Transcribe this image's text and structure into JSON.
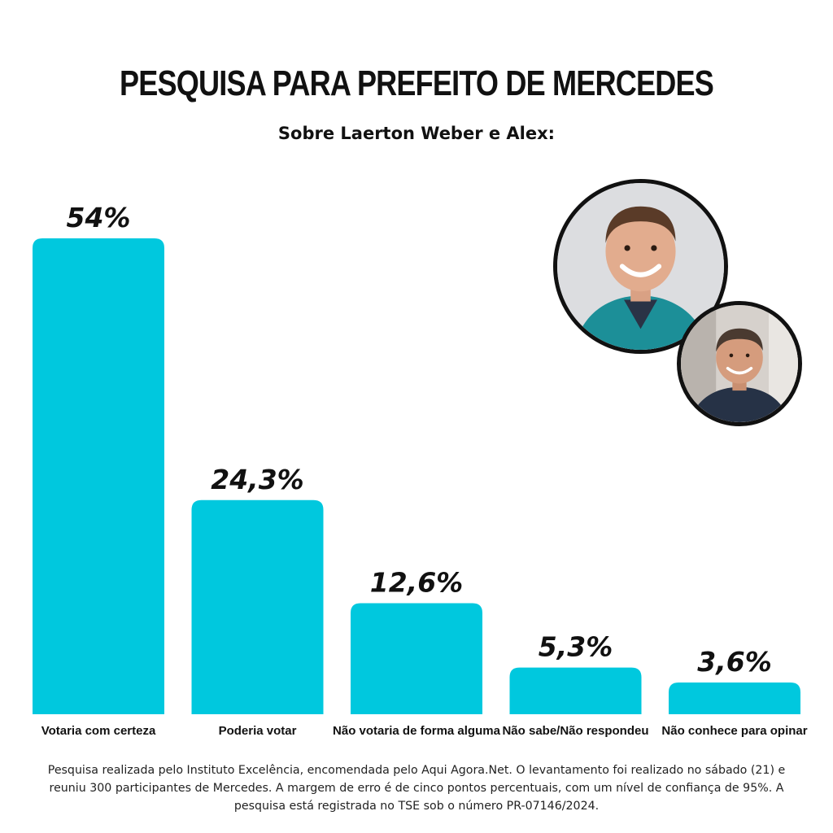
{
  "header": {
    "title": "PESQUISA PARA PREFEITO DE MERCEDES",
    "subtitle": "Sobre Laerton Weber e Alex:"
  },
  "colors": {
    "bar": "#00c8de",
    "text": "#111111",
    "background": "#ffffff"
  },
  "photos": [
    {
      "icon": "candidate-photo-laerton-weber"
    },
    {
      "icon": "candidate-photo-alex"
    }
  ],
  "footnote": "Pesquisa realizada pelo Instituto Excelência, encomendada pelo Aqui Agora.Net. O levantamento foi realizado no sábado (21) e reuniu 300 participantes de Mercedes. A margem de erro é de cinco pontos percentuais, com um nível de confiança de 95%. A pesquisa está registrada no TSE sob o número PR-07146/2024.",
  "chart_data": {
    "type": "bar",
    "title": "PESQUISA PARA PREFEITO DE MERCEDES",
    "subtitle": "Sobre Laerton Weber e Alex:",
    "categories": [
      "Votaria com certeza",
      "Poderia votar",
      "Não votaria de forma alguma",
      "Não sabe/Não respondeu",
      "Não conhece para opinar"
    ],
    "values": [
      54,
      24.3,
      12.6,
      5.3,
      3.6
    ],
    "value_labels": [
      "54%",
      "24,3%",
      "12,6%",
      "5,3%",
      "3,6%"
    ],
    "ylim": [
      0,
      54
    ],
    "grid": false,
    "legend": "none"
  }
}
